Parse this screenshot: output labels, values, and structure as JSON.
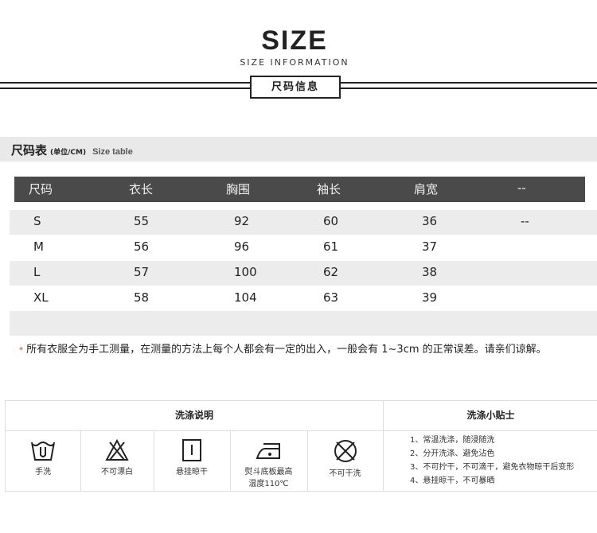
{
  "header": {
    "title": "SIZE",
    "subtitle": "SIZE INFORMATION",
    "cn_label": "尺码信息"
  },
  "size_section": {
    "title": "尺码表",
    "unit": "(单位/CM)",
    "en": "Size table"
  },
  "table": {
    "columns": [
      "尺码",
      "衣长",
      "胸围",
      "袖长",
      "肩宽",
      "--"
    ],
    "rows": [
      [
        "S",
        "55",
        "92",
        "60",
        "36",
        "--"
      ],
      [
        "M",
        "56",
        "96",
        "61",
        "37",
        ""
      ],
      [
        "L",
        "57",
        "100",
        "62",
        "38",
        ""
      ],
      [
        "XL",
        "58",
        "104",
        "63",
        "39",
        ""
      ]
    ]
  },
  "note": {
    "star": "*",
    "text": "所有衣服全为手工测量，在测量的方法上每个人都会有一定的出入，一般会有 1~3cm 的正常误差。请亲们谅解。"
  },
  "wash": {
    "title": "洗涤说明",
    "tips_title": "洗涤小贴士",
    "icons": [
      {
        "icon": "hand-wash-icon",
        "label": "手洗"
      },
      {
        "icon": "no-bleach-icon",
        "label": "不可漂白"
      },
      {
        "icon": "hang-dry-icon",
        "label": "悬挂晾干"
      },
      {
        "icon": "iron-icon",
        "label": "熨斗底板最高",
        "label2": "温度110℃"
      },
      {
        "icon": "no-dry-clean-icon",
        "label": "不可干洗"
      }
    ],
    "tips": [
      "1、常温洗涤，随浸随洗",
      "2、分开洗涤、避免沾色",
      "3、不可拧干，不可滴干，避免衣物晾干后变形",
      "4、悬挂晾干，不可暴晒"
    ]
  }
}
